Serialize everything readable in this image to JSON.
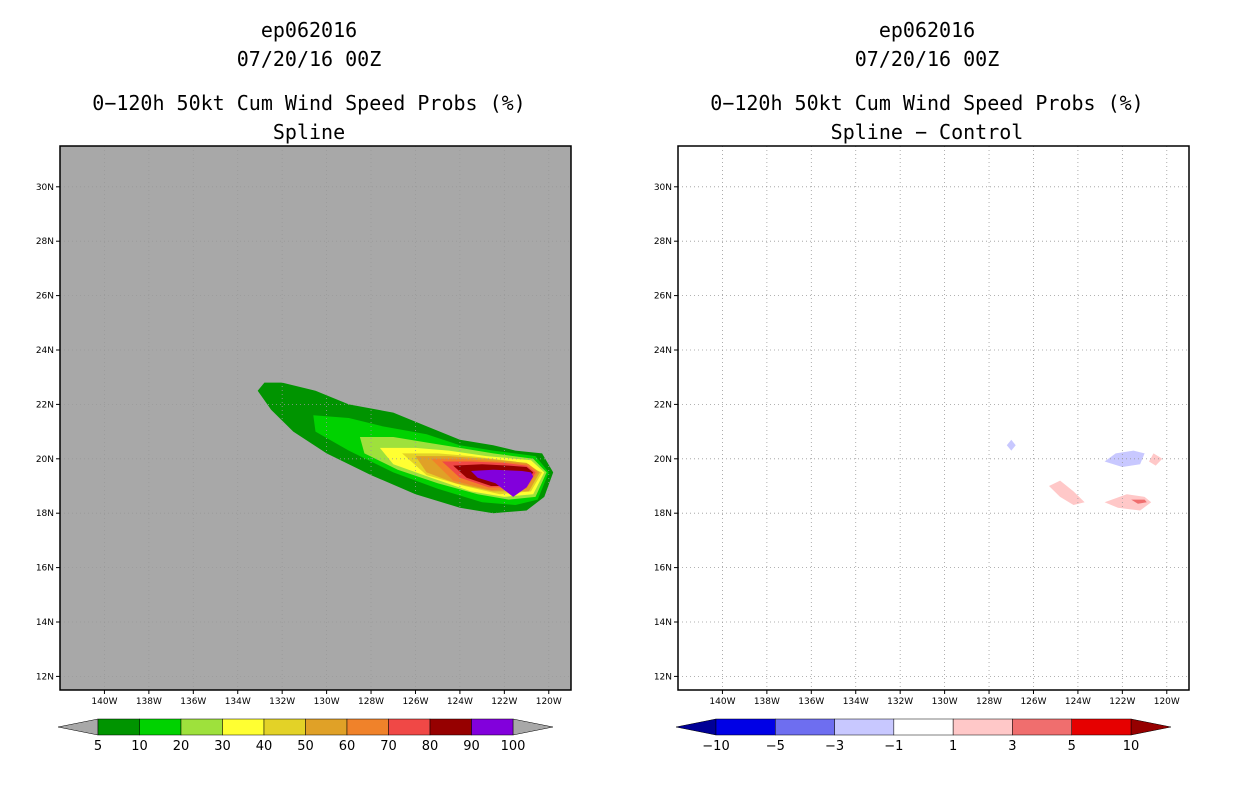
{
  "chart_data": [
    {
      "type": "filled-contour-map",
      "title_lines": [
        "ep062016",
        "07/20/16 00Z",
        "0−120h 50kt Cum Wind Speed Probs (%)",
        "Spline"
      ],
      "xlim": [
        -142,
        -119
      ],
      "ylim": [
        11.5,
        31.5
      ],
      "x_ticks": [
        -140,
        -138,
        -136,
        -134,
        -132,
        -130,
        -128,
        -126,
        -124,
        -122,
        -120
      ],
      "x_tick_labels": [
        "140W",
        "138W",
        "136W",
        "134W",
        "132W",
        "130W",
        "128W",
        "126W",
        "124W",
        "122W",
        "120W"
      ],
      "y_ticks": [
        12,
        14,
        16,
        18,
        20,
        22,
        24,
        26,
        28,
        30
      ],
      "y_tick_labels": [
        "12N",
        "14N",
        "16N",
        "18N",
        "20N",
        "22N",
        "24N",
        "26N",
        "28N",
        "30N"
      ],
      "grid": true,
      "background": "#a8a8a8",
      "colorbar": {
        "levels": [
          "5",
          "10",
          "20",
          "30",
          "40",
          "50",
          "60",
          "70",
          "80",
          "90",
          "100"
        ],
        "colors": [
          "#009400",
          "#00d200",
          "#9ee13c",
          "#ffff32",
          "#e3d227",
          "#e0a127",
          "#f0822a",
          "#f04846",
          "#960000",
          "#8200dc"
        ],
        "end_colors": [
          "#a8a8a8",
          "#a8a8a8"
        ]
      },
      "regions": [
        {
          "level": "5",
          "color": "#009400",
          "polygon": [
            [
              -132.8,
              22.8
            ],
            [
              -132,
              22.8
            ],
            [
              -130.5,
              22.5
            ],
            [
              -129,
              22
            ],
            [
              -127,
              21.7
            ],
            [
              -125.5,
              21.2
            ],
            [
              -124,
              20.7
            ],
            [
              -122.5,
              20.5
            ],
            [
              -121.5,
              20.3
            ],
            [
              -120.3,
              20.2
            ],
            [
              -119.8,
              19.5
            ],
            [
              -120.2,
              18.6
            ],
            [
              -121,
              18.1
            ],
            [
              -122.5,
              18
            ],
            [
              -124,
              18.2
            ],
            [
              -126,
              18.7
            ],
            [
              -128,
              19.4
            ],
            [
              -130,
              20.2
            ],
            [
              -131.5,
              21
            ],
            [
              -132.5,
              21.8
            ],
            [
              -133.1,
              22.5
            ]
          ]
        },
        {
          "level": "10",
          "color": "#00d200",
          "polygon": [
            [
              -130.6,
              21.6
            ],
            [
              -129,
              21.5
            ],
            [
              -127.5,
              21.2
            ],
            [
              -125.5,
              20.9
            ],
            [
              -124,
              20.5
            ],
            [
              -122.5,
              20.3
            ],
            [
              -120.6,
              20.1
            ],
            [
              -120,
              19.5
            ],
            [
              -120.5,
              18.5
            ],
            [
              -121.5,
              18.3
            ],
            [
              -123,
              18.4
            ],
            [
              -125,
              18.9
            ],
            [
              -127,
              19.5
            ],
            [
              -129,
              20.3
            ],
            [
              -130.5,
              21
            ]
          ]
        },
        {
          "level": "20",
          "color": "#9ee13c",
          "polygon": [
            [
              -128.5,
              20.8
            ],
            [
              -127,
              20.8
            ],
            [
              -125.5,
              20.6
            ],
            [
              -124,
              20.4
            ],
            [
              -122.5,
              20.2
            ],
            [
              -120.7,
              20
            ],
            [
              -120.1,
              19.5
            ],
            [
              -120.6,
              18.6
            ],
            [
              -121.8,
              18.5
            ],
            [
              -123.2,
              18.7
            ],
            [
              -125,
              19.1
            ],
            [
              -126.8,
              19.6
            ],
            [
              -128.3,
              20.2
            ]
          ]
        },
        {
          "level": "30",
          "color": "#ffff32",
          "polygon": [
            [
              -127.6,
              20.4
            ],
            [
              -126,
              20.4
            ],
            [
              -124.5,
              20.3
            ],
            [
              -122.8,
              20.1
            ],
            [
              -120.8,
              19.95
            ],
            [
              -120.2,
              19.5
            ],
            [
              -120.7,
              18.7
            ],
            [
              -122,
              18.6
            ],
            [
              -123.5,
              18.8
            ],
            [
              -125.3,
              19.3
            ],
            [
              -127,
              19.8
            ]
          ]
        },
        {
          "level": "40",
          "color": "#e3d227",
          "polygon": [
            [
              -126.6,
              20.2
            ],
            [
              -125,
              20.2
            ],
            [
              -123.5,
              20.1
            ],
            [
              -121.5,
              19.9
            ],
            [
              -120.3,
              19.5
            ],
            [
              -120.8,
              18.8
            ],
            [
              -122.2,
              18.7
            ],
            [
              -123.8,
              19
            ],
            [
              -125.5,
              19.4
            ]
          ]
        },
        {
          "level": "50",
          "color": "#e0a127",
          "polygon": [
            [
              -126,
              20.1
            ],
            [
              -124.5,
              20.1
            ],
            [
              -122.8,
              20
            ],
            [
              -121,
              19.85
            ],
            [
              -120.4,
              19.5
            ],
            [
              -120.9,
              18.8
            ],
            [
              -122.5,
              18.8
            ],
            [
              -124.2,
              19.1
            ],
            [
              -125.5,
              19.5
            ]
          ]
        },
        {
          "level": "60",
          "color": "#f0822a",
          "polygon": [
            [
              -125.3,
              20
            ],
            [
              -124,
              20
            ],
            [
              -122.3,
              19.9
            ],
            [
              -120.9,
              19.8
            ],
            [
              -120.5,
              19.5
            ],
            [
              -121,
              18.9
            ],
            [
              -122.6,
              18.85
            ],
            [
              -124.3,
              19.2
            ]
          ]
        },
        {
          "level": "70",
          "color": "#f04846",
          "polygon": [
            [
              -124.8,
              19.9
            ],
            [
              -123.5,
              19.9
            ],
            [
              -122,
              19.85
            ],
            [
              -121,
              19.75
            ],
            [
              -120.6,
              19.5
            ],
            [
              -121,
              18.95
            ],
            [
              -122.7,
              18.95
            ],
            [
              -124,
              19.3
            ]
          ]
        },
        {
          "level": "80",
          "color": "#960000",
          "polygon": [
            [
              -124.3,
              19.75
            ],
            [
              -123,
              19.8
            ],
            [
              -121.8,
              19.75
            ],
            [
              -121,
              19.7
            ],
            [
              -120.7,
              19.5
            ],
            [
              -121.1,
              19
            ],
            [
              -122.6,
              19
            ],
            [
              -123.7,
              19.3
            ]
          ]
        },
        {
          "level": "90",
          "color": "#8200dc",
          "polygon": [
            [
              -123.5,
              19.55
            ],
            [
              -122.5,
              19.6
            ],
            [
              -121.2,
              19.55
            ],
            [
              -120.8,
              19.5
            ],
            [
              -120.7,
              19.35
            ],
            [
              -121,
              18.95
            ],
            [
              -121.6,
              18.6
            ],
            [
              -122.4,
              19.1
            ],
            [
              -123.2,
              19.3
            ]
          ]
        }
      ]
    },
    {
      "type": "filled-contour-map",
      "title_lines": [
        "ep062016",
        "07/20/16 00Z",
        "0−120h 50kt Cum Wind Speed Probs (%)",
        "Spline − Control"
      ],
      "xlim": [
        -142,
        -119
      ],
      "ylim": [
        11.5,
        31.5
      ],
      "x_ticks": [
        -140,
        -138,
        -136,
        -134,
        -132,
        -130,
        -128,
        -126,
        -124,
        -122,
        -120
      ],
      "x_tick_labels": [
        "140W",
        "138W",
        "136W",
        "134W",
        "132W",
        "130W",
        "128W",
        "126W",
        "124W",
        "122W",
        "120W"
      ],
      "y_ticks": [
        12,
        14,
        16,
        18,
        20,
        22,
        24,
        26,
        28,
        30
      ],
      "y_tick_labels": [
        "12N",
        "14N",
        "16N",
        "18N",
        "20N",
        "22N",
        "24N",
        "26N",
        "28N",
        "30N"
      ],
      "grid": true,
      "background": "#ffffff",
      "colorbar": {
        "levels": [
          "−10",
          "−5",
          "−3",
          "−1",
          "1",
          "3",
          "5",
          "10"
        ],
        "colors": [
          "#0000e6",
          "#6e6ef0",
          "#c8c8ff",
          "#ffffff",
          "#ffc8c8",
          "#f06e6e",
          "#e60000"
        ],
        "end_colors": [
          "#000096",
          "#960000"
        ]
      },
      "regions": [
        {
          "level": "−3",
          "color": "#c8c8ff",
          "polygon": [
            [
              -127.2,
              20.5
            ],
            [
              -127,
              20.7
            ],
            [
              -126.8,
              20.5
            ],
            [
              -127,
              20.3
            ]
          ]
        },
        {
          "level": "−3",
          "color": "#c8c8ff",
          "polygon": [
            [
              -122.8,
              19.9
            ],
            [
              -122.3,
              20.2
            ],
            [
              -121.5,
              20.3
            ],
            [
              -121,
              20.2
            ],
            [
              -121.2,
              19.8
            ],
            [
              -122,
              19.7
            ]
          ]
        },
        {
          "level": "3",
          "color": "#ffc8c8",
          "polygon": [
            [
              -125.3,
              19
            ],
            [
              -124.8,
              19.2
            ],
            [
              -124.2,
              18.8
            ],
            [
              -123.7,
              18.4
            ],
            [
              -124.2,
              18.3
            ],
            [
              -124.8,
              18.6
            ]
          ]
        },
        {
          "level": "3",
          "color": "#ffc8c8",
          "polygon": [
            [
              -122.8,
              18.4
            ],
            [
              -121.8,
              18.7
            ],
            [
              -121,
              18.6
            ],
            [
              -120.7,
              18.4
            ],
            [
              -121.2,
              18.1
            ],
            [
              -122.2,
              18.2
            ]
          ]
        },
        {
          "level": "3",
          "color": "#ffc8c8",
          "polygon": [
            [
              -120.6,
              20.2
            ],
            [
              -120.2,
              20.0
            ],
            [
              -120.5,
              19.75
            ],
            [
              -120.8,
              19.9
            ]
          ]
        },
        {
          "level": "5",
          "color": "#f06e6e",
          "polygon": [
            [
              -121.6,
              18.5
            ],
            [
              -121,
              18.5
            ],
            [
              -120.9,
              18.4
            ],
            [
              -121.3,
              18.35
            ]
          ]
        }
      ]
    }
  ]
}
